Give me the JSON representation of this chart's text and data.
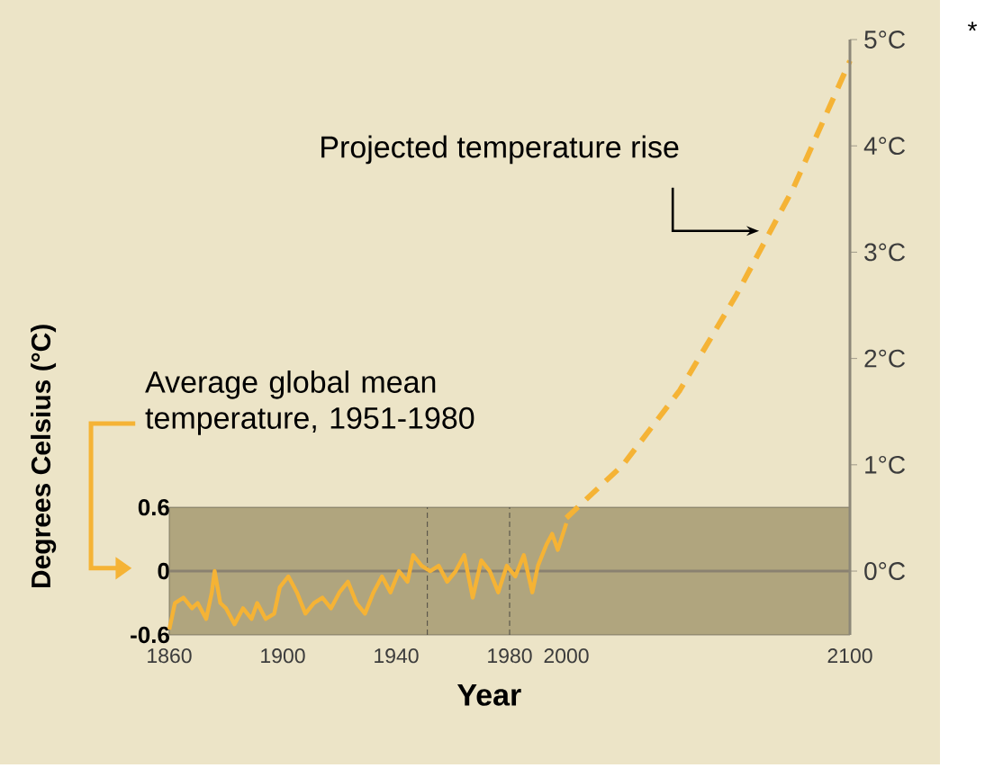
{
  "chart_data": {
    "type": "line",
    "xlabel": "Year",
    "ylabel": "Degrees Celsius (°C)",
    "annotations": [
      {
        "text": "Projected temperature rise",
        "x": 2068,
        "y": 3.2
      },
      "Average global mean temperature, 1951-1980",
      "*"
    ],
    "xlim": [
      1860,
      2100
    ],
    "xticks": [
      1860,
      1900,
      1940,
      1980,
      2000,
      2100
    ],
    "ylim": [
      -0.6,
      5
    ],
    "yticks": [
      -0.6,
      0,
      0.6
    ],
    "y2lim": [
      -0.6,
      5
    ],
    "y2ticks": [
      {
        "value": 0,
        "label": "0°C"
      },
      {
        "value": 1,
        "label": "1°C"
      },
      {
        "value": 2,
        "label": "2°C"
      },
      {
        "value": 3,
        "label": "3°C"
      },
      {
        "value": 4,
        "label": "4°C"
      },
      {
        "value": 5,
        "label": "5°C"
      }
    ],
    "marker": "none",
    "bands": [
      {
        "axis": "y",
        "from": -0.6,
        "to": 0.6,
        "color": "#b0a57e"
      }
    ],
    "ref_lines": [
      {
        "axis": "y",
        "value": 0,
        "color": "#8a8170",
        "line_style": "solid"
      },
      {
        "axis": "x",
        "value": 1951,
        "color": "#333333",
        "line_style": "dashed"
      },
      {
        "axis": "x",
        "value": 1980,
        "color": "#333333",
        "line_style": "dashed"
      }
    ],
    "series": [
      {
        "color": "#f5b335",
        "line_style": "solid",
        "x": [
          1860,
          1862,
          1865,
          1868,
          1870,
          1873,
          1875,
          1876,
          1878,
          1880,
          1883,
          1886,
          1889,
          1891,
          1894,
          1897,
          1899,
          1902,
          1905,
          1908,
          1911,
          1914,
          1917,
          1920,
          1923,
          1926,
          1929,
          1932,
          1935,
          1938,
          1941,
          1944,
          1946,
          1949,
          1952,
          1955,
          1958,
          1961,
          1964,
          1967,
          1970,
          1973,
          1976,
          1979,
          1982,
          1985,
          1988,
          1990,
          1993,
          1995,
          1997,
          2000
        ],
        "values": [
          -0.55,
          -0.3,
          -0.25,
          -0.35,
          -0.3,
          -0.45,
          -0.2,
          0.0,
          -0.3,
          -0.35,
          -0.5,
          -0.35,
          -0.45,
          -0.3,
          -0.45,
          -0.4,
          -0.15,
          -0.05,
          -0.2,
          -0.4,
          -0.3,
          -0.25,
          -0.35,
          -0.2,
          -0.1,
          -0.3,
          -0.4,
          -0.2,
          -0.05,
          -0.2,
          0.0,
          -0.1,
          0.15,
          0.05,
          0.0,
          0.05,
          -0.1,
          0.0,
          0.15,
          -0.25,
          0.1,
          0.0,
          -0.2,
          0.05,
          -0.05,
          0.15,
          -0.2,
          0.05,
          0.25,
          0.35,
          0.2,
          0.45
        ]
      },
      {
        "color": "#f5b335",
        "line_style": "dashed",
        "x": [
          2000,
          2020,
          2040,
          2060,
          2080,
          2100
        ],
        "values": [
          0.5,
          1.0,
          1.7,
          2.6,
          3.6,
          4.8
        ]
      }
    ]
  }
}
